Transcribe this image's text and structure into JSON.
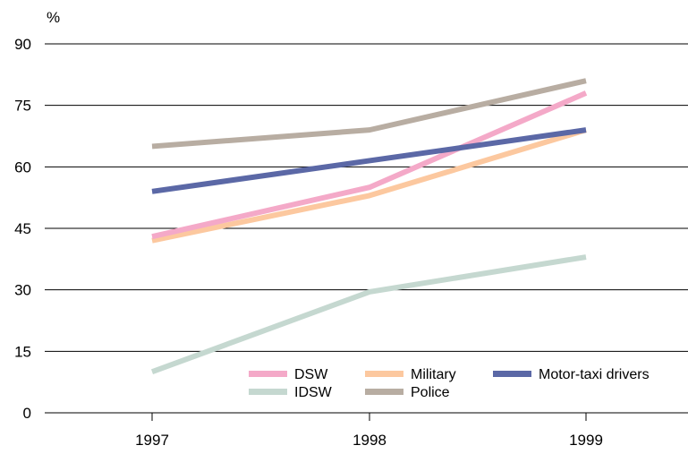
{
  "chart_data": {
    "type": "line",
    "unit_label": "%",
    "x": [
      "1997",
      "1998",
      "1999"
    ],
    "ylim": [
      0,
      90
    ],
    "yticks": [
      0,
      15,
      30,
      45,
      60,
      75,
      90
    ],
    "grid": true,
    "legend_position": "bottom-right",
    "series": [
      {
        "name": "DSW",
        "color": "#f4a9c8",
        "values": [
          43,
          55,
          78
        ]
      },
      {
        "name": "Military",
        "color": "#fcc89f",
        "values": [
          42,
          53,
          69
        ]
      },
      {
        "name": "Motor-taxi drivers",
        "color": "#5b68a6",
        "values": [
          54,
          61.5,
          69
        ]
      },
      {
        "name": "IDSW",
        "color": "#c5d8d0",
        "values": [
          10,
          29.5,
          38
        ]
      },
      {
        "name": "Police",
        "color": "#b8ada2",
        "values": [
          65,
          69,
          81
        ]
      }
    ]
  }
}
